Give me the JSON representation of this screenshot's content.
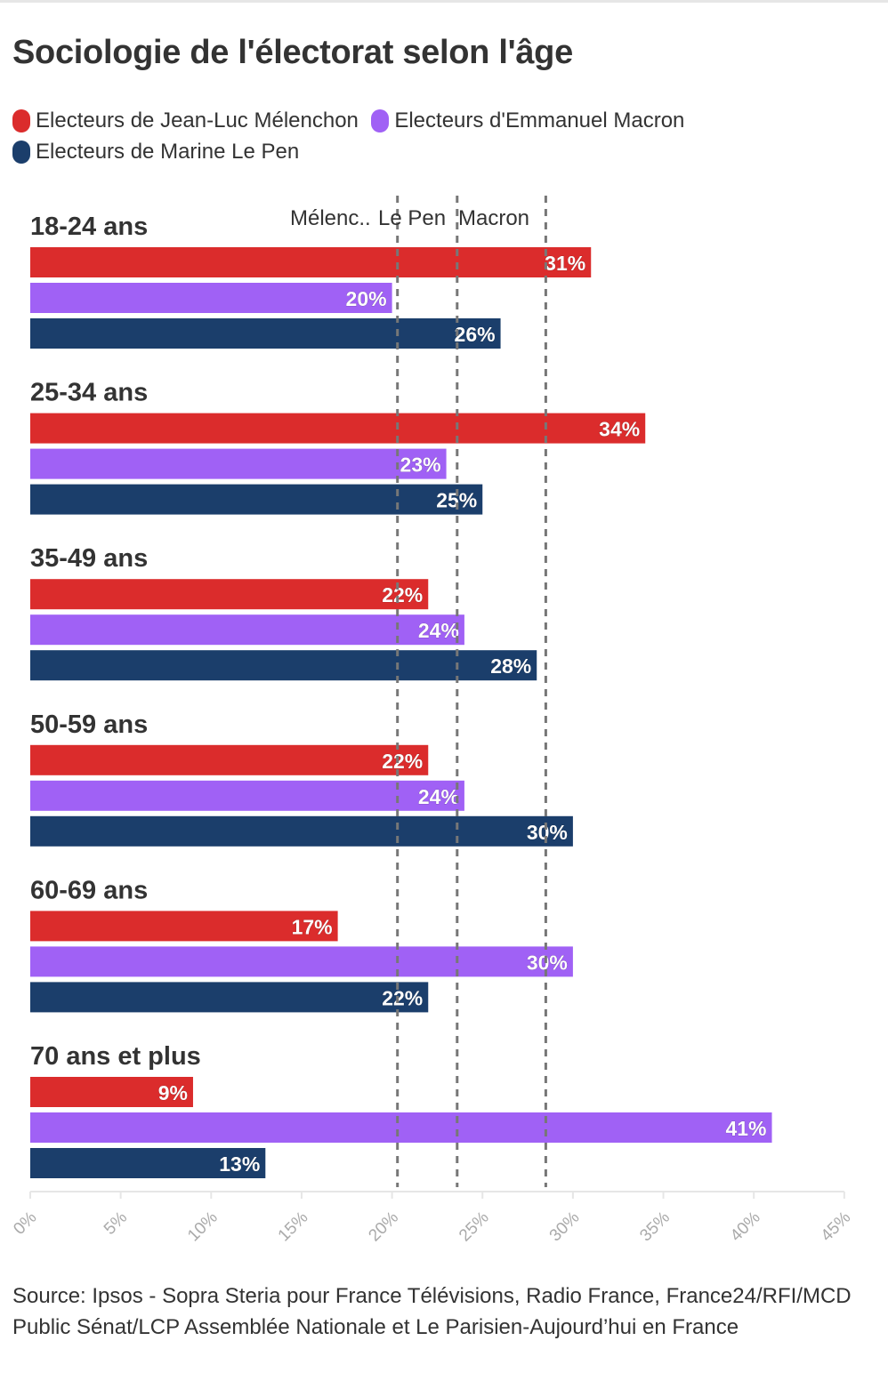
{
  "title": "Sociologie de l'électorat selon l'âge",
  "legend": [
    {
      "label": "Electeurs de Jean-Luc Mélenchon",
      "color": "#db2c2c"
    },
    {
      "label": "Electeurs d'Emmanuel Macron",
      "color": "#a061f5"
    },
    {
      "label": "Electeurs de Marine Le Pen",
      "color": "#1b3e6b"
    }
  ],
  "source": "Source: Ipsos - Sopra Steria pour France Télévisions, Radio France, France24/RFI/MCD Public Sénat/LCP Assemblée Nationale et Le Parisien-Aujourd’hui en France",
  "chart_data": {
    "type": "bar",
    "orientation": "horizontal",
    "categories": [
      "18-24 ans",
      "25-34 ans",
      "35-49 ans",
      "50-59 ans",
      "60-69 ans",
      "70 ans et plus"
    ],
    "series": [
      {
        "name": "Electeurs de Jean-Luc Mélenchon",
        "color": "#db2c2c",
        "values": [
          31,
          34,
          22,
          22,
          17,
          9
        ]
      },
      {
        "name": "Electeurs d'Emmanuel Macron",
        "color": "#a061f5",
        "values": [
          20,
          23,
          24,
          24,
          30,
          41
        ]
      },
      {
        "name": "Electeurs de Marine Le Pen",
        "color": "#1b3e6b",
        "values": [
          26,
          25,
          28,
          30,
          22,
          13
        ]
      }
    ],
    "value_labels": [
      [
        "31%",
        "20%",
        "26%"
      ],
      [
        "34%",
        "23%",
        "25%"
      ],
      [
        "22%",
        "24%",
        "28%"
      ],
      [
        "22%",
        "24%",
        "30%"
      ],
      [
        "17%",
        "30%",
        "22%"
      ],
      [
        "9%",
        "41%",
        "13%"
      ]
    ],
    "xlim": [
      0,
      45
    ],
    "xticks": [
      0,
      5,
      10,
      15,
      20,
      25,
      30,
      35,
      40,
      45
    ],
    "xtick_labels": [
      "0%",
      "5%",
      "10%",
      "15%",
      "20%",
      "25%",
      "30%",
      "35%",
      "40%",
      "45%"
    ],
    "reference_lines": [
      {
        "label": "Mélenc..",
        "value": 20.3
      },
      {
        "label": "Le Pen",
        "value": 23.6
      },
      {
        "label": "Macron",
        "value": 28.5
      }
    ],
    "grid": false,
    "legend_position": "top-left"
  }
}
